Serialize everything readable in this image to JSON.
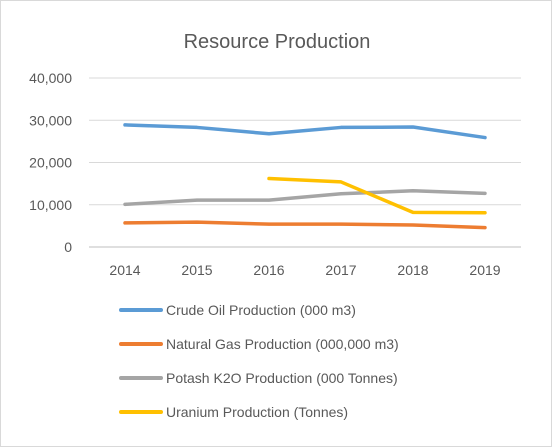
{
  "chart_data": {
    "type": "line",
    "title": "Resource Production",
    "xlabel": "",
    "ylabel": "",
    "categories": [
      "2014",
      "2015",
      "2016",
      "2017",
      "2018",
      "2019"
    ],
    "y_ticks": [
      "0",
      "10,000",
      "20,000",
      "30,000",
      "40,000"
    ],
    "ylim": [
      0,
      40000
    ],
    "grid": true,
    "legend_position": "bottom",
    "series": [
      {
        "name": "Crude Oil Production (000 m3)",
        "color": "#5b9bd5",
        "values": [
          28900,
          28300,
          26800,
          28300,
          28400,
          25900
        ]
      },
      {
        "name": "Natural Gas Production (000,000 m3)",
        "color": "#ed7d31",
        "values": [
          5700,
          5900,
          5400,
          5400,
          5200,
          4600
        ]
      },
      {
        "name": "Potash K2O Production (000 Tonnes)",
        "color": "#a5a5a5",
        "values": [
          10100,
          11100,
          11100,
          12600,
          13300,
          12700
        ]
      },
      {
        "name": "Uranium Production (Tonnes)",
        "color": "#ffc000",
        "values": [
          null,
          null,
          16200,
          15400,
          8200,
          8100
        ]
      }
    ]
  }
}
